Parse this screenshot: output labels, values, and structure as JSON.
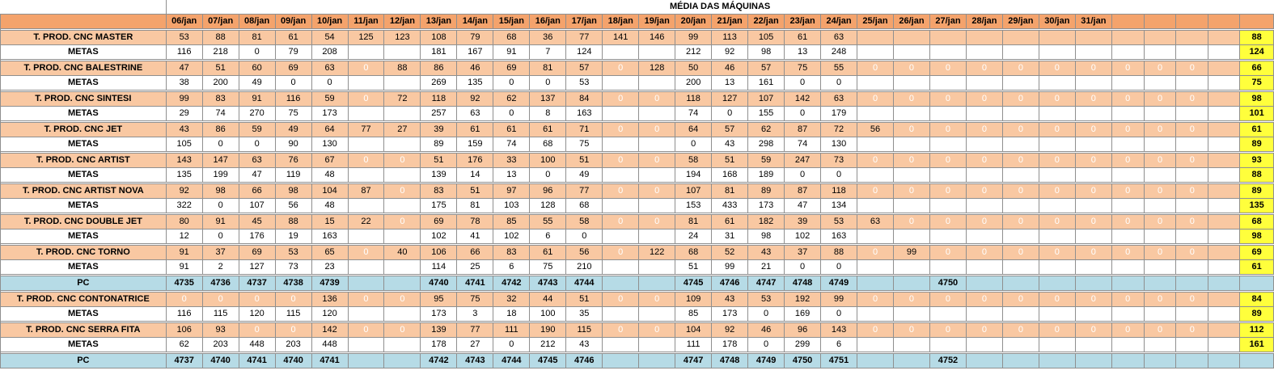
{
  "title": "MÉDIA DAS MÁQUINAS",
  "dates": [
    "06/jan",
    "07/jan",
    "08/jan",
    "09/jan",
    "10/jan",
    "11/jan",
    "12/jan",
    "13/jan",
    "14/jan",
    "15/jan",
    "16/jan",
    "17/jan",
    "18/jan",
    "19/jan",
    "20/jan",
    "21/jan",
    "22/jan",
    "23/jan",
    "24/jan",
    "25/jan",
    "26/jan",
    "27/jan",
    "28/jan",
    "29/jan",
    "30/jan",
    "31/jan",
    "",
    "",
    "",
    ""
  ],
  "rows": [
    {
      "label": "T. PROD. CNC MASTER",
      "type": "prod",
      "cells": [
        "53",
        "88",
        "81",
        "61",
        "54",
        "125",
        "123",
        "108",
        "79",
        "68",
        "36",
        "77",
        "141",
        "146",
        "99",
        "113",
        "105",
        "61",
        "63",
        "",
        "",
        "",
        "",
        "",
        "",
        "",
        "",
        "",
        "",
        ""
      ],
      "avg": "88"
    },
    {
      "label": "METAS",
      "type": "meta",
      "cells": [
        "116",
        "218",
        "0",
        "79",
        "208",
        "",
        "",
        "181",
        "167",
        "91",
        "7",
        "124",
        "",
        "",
        "212",
        "92",
        "98",
        "13",
        "248",
        "",
        "",
        "",
        "",
        "",
        "",
        "",
        "",
        "",
        "",
        ""
      ],
      "avg": "124"
    },
    {
      "label": "T. PROD. CNC BALESTRINE",
      "type": "prod",
      "cells": [
        "47",
        "51",
        "60",
        "69",
        "63",
        "0",
        "88",
        "86",
        "46",
        "69",
        "81",
        "57",
        "0",
        "128",
        "50",
        "46",
        "57",
        "75",
        "55",
        "0",
        "0",
        "0",
        "0",
        "0",
        "0",
        "0",
        "0",
        "0",
        "0",
        ""
      ],
      "avg": "66"
    },
    {
      "label": "METAS",
      "type": "meta",
      "cells": [
        "38",
        "200",
        "49",
        "0",
        "0",
        "",
        "",
        "269",
        "135",
        "0",
        "0",
        "53",
        "",
        "",
        "200",
        "13",
        "161",
        "0",
        "0",
        "",
        "",
        "",
        "",
        "",
        "",
        "",
        "",
        "",
        "",
        ""
      ],
      "avg": "75"
    },
    {
      "label": "T. PROD. CNC SINTESI",
      "type": "prod",
      "cells": [
        "99",
        "83",
        "91",
        "116",
        "59",
        "0",
        "72",
        "118",
        "92",
        "62",
        "137",
        "84",
        "0",
        "0",
        "118",
        "127",
        "107",
        "142",
        "63",
        "0",
        "0",
        "0",
        "0",
        "0",
        "0",
        "0",
        "0",
        "0",
        "0",
        ""
      ],
      "avg": "98"
    },
    {
      "label": "METAS",
      "type": "meta",
      "cells": [
        "29",
        "74",
        "270",
        "75",
        "173",
        "",
        "",
        "257",
        "63",
        "0",
        "8",
        "163",
        "",
        "",
        "74",
        "0",
        "155",
        "0",
        "179",
        "",
        "",
        "",
        "",
        "",
        "",
        "",
        "",
        "",
        "",
        ""
      ],
      "avg": "101"
    },
    {
      "label": "T. PROD. CNC JET",
      "type": "prod",
      "cells": [
        "43",
        "86",
        "59",
        "49",
        "64",
        "77",
        "27",
        "39",
        "61",
        "61",
        "61",
        "71",
        "0",
        "0",
        "64",
        "57",
        "62",
        "87",
        "72",
        "56",
        "0",
        "0",
        "0",
        "0",
        "0",
        "0",
        "0",
        "0",
        "0",
        ""
      ],
      "avg": "61"
    },
    {
      "label": "METAS",
      "type": "meta",
      "cells": [
        "105",
        "0",
        "0",
        "90",
        "130",
        "",
        "",
        "89",
        "159",
        "74",
        "68",
        "75",
        "",
        "",
        "0",
        "43",
        "298",
        "74",
        "130",
        "",
        "",
        "",
        "",
        "",
        "",
        "",
        "",
        "",
        "",
        ""
      ],
      "avg": "89"
    },
    {
      "label": "T. PROD. CNC ARTIST",
      "type": "prod",
      "cells": [
        "143",
        "147",
        "63",
        "76",
        "67",
        "0",
        "0",
        "51",
        "176",
        "33",
        "100",
        "51",
        "0",
        "0",
        "58",
        "51",
        "59",
        "247",
        "73",
        "0",
        "0",
        "0",
        "0",
        "0",
        "0",
        "0",
        "0",
        "0",
        "0",
        ""
      ],
      "avg": "93"
    },
    {
      "label": "METAS",
      "type": "meta",
      "cells": [
        "135",
        "199",
        "47",
        "119",
        "48",
        "",
        "",
        "139",
        "14",
        "13",
        "0",
        "49",
        "",
        "",
        "194",
        "168",
        "189",
        "0",
        "0",
        "",
        "",
        "",
        "",
        "",
        "",
        "",
        "",
        "",
        "",
        ""
      ],
      "avg": "88"
    },
    {
      "label": "T. PROD. CNC ARTIST NOVA",
      "type": "prod",
      "cells": [
        "92",
        "98",
        "66",
        "98",
        "104",
        "87",
        "0",
        "83",
        "51",
        "97",
        "96",
        "77",
        "0",
        "0",
        "107",
        "81",
        "89",
        "87",
        "118",
        "0",
        "0",
        "0",
        "0",
        "0",
        "0",
        "0",
        "0",
        "0",
        "0",
        ""
      ],
      "avg": "89"
    },
    {
      "label": "METAS",
      "type": "meta",
      "cells": [
        "322",
        "0",
        "107",
        "56",
        "48",
        "",
        "",
        "175",
        "81",
        "103",
        "128",
        "68",
        "",
        "",
        "153",
        "433",
        "173",
        "47",
        "134",
        "",
        "",
        "",
        "",
        "",
        "",
        "",
        "",
        "",
        "",
        ""
      ],
      "avg": "135"
    },
    {
      "label": "T. PROD. CNC DOUBLE JET",
      "type": "prod",
      "cells": [
        "80",
        "91",
        "45",
        "88",
        "15",
        "22",
        "0",
        "69",
        "78",
        "85",
        "55",
        "58",
        "0",
        "0",
        "81",
        "61",
        "182",
        "39",
        "53",
        "63",
        "0",
        "0",
        "0",
        "0",
        "0",
        "0",
        "0",
        "0",
        "0",
        ""
      ],
      "avg": "68"
    },
    {
      "label": "METAS",
      "type": "meta",
      "cells": [
        "12",
        "0",
        "176",
        "19",
        "163",
        "",
        "",
        "102",
        "41",
        "102",
        "6",
        "0",
        "",
        "",
        "24",
        "31",
        "98",
        "102",
        "163",
        "",
        "",
        "",
        "",
        "",
        "",
        "",
        "",
        "",
        "",
        ""
      ],
      "avg": "98"
    },
    {
      "label": "T. PROD. CNC TORNO",
      "type": "prod",
      "cells": [
        "91",
        "37",
        "69",
        "53",
        "65",
        "0",
        "40",
        "106",
        "66",
        "83",
        "61",
        "56",
        "0",
        "122",
        "68",
        "52",
        "43",
        "37",
        "88",
        "0",
        "99",
        "0",
        "0",
        "0",
        "0",
        "0",
        "0",
        "0",
        "0",
        ""
      ],
      "avg": "69"
    },
    {
      "label": "METAS",
      "type": "meta",
      "cells": [
        "91",
        "2",
        "127",
        "73",
        "23",
        "",
        "",
        "114",
        "25",
        "6",
        "75",
        "210",
        "",
        "",
        "51",
        "99",
        "21",
        "0",
        "0",
        "",
        "",
        "",
        "",
        "",
        "",
        "",
        "",
        "",
        "",
        ""
      ],
      "avg": "61"
    },
    {
      "label": "PC",
      "type": "pc",
      "cells": [
        "4735",
        "4736",
        "4737",
        "4738",
        "4739",
        "",
        "",
        "4740",
        "4741",
        "4742",
        "4743",
        "4744",
        "",
        "",
        "4745",
        "4746",
        "4747",
        "4748",
        "4749",
        "",
        "",
        "4750",
        "",
        "",
        "",
        "",
        "",
        "",
        "",
        ""
      ],
      "avg": ""
    },
    {
      "label": "T. PROD. CNC CONTONATRICE",
      "type": "prod",
      "cells": [
        "0",
        "0",
        "0",
        "0",
        "136",
        "0",
        "0",
        "95",
        "75",
        "32",
        "44",
        "51",
        "0",
        "0",
        "109",
        "43",
        "53",
        "192",
        "99",
        "0",
        "0",
        "0",
        "0",
        "0",
        "0",
        "0",
        "0",
        "0",
        "0",
        ""
      ],
      "avg": "84"
    },
    {
      "label": "METAS",
      "type": "meta",
      "cells": [
        "116",
        "115",
        "120",
        "115",
        "120",
        "",
        "",
        "173",
        "3",
        "18",
        "100",
        "35",
        "",
        "",
        "85",
        "173",
        "0",
        "169",
        "0",
        "",
        "",
        "",
        "",
        "",
        "",
        "",
        "",
        "",
        "",
        ""
      ],
      "avg": "89"
    },
    {
      "label": "T. PROD. CNC SERRA FITA",
      "type": "prod",
      "cells": [
        "106",
        "93",
        "0",
        "0",
        "142",
        "0",
        "0",
        "139",
        "77",
        "111",
        "190",
        "115",
        "0",
        "0",
        "104",
        "92",
        "46",
        "96",
        "143",
        "0",
        "0",
        "0",
        "0",
        "0",
        "0",
        "0",
        "0",
        "0",
        "0",
        ""
      ],
      "avg": "112"
    },
    {
      "label": "METAS",
      "type": "meta",
      "cells": [
        "62",
        "203",
        "448",
        "203",
        "448",
        "",
        "",
        "178",
        "27",
        "0",
        "212",
        "43",
        "",
        "",
        "111",
        "178",
        "0",
        "299",
        "6",
        "",
        "",
        "",
        "",
        "",
        "",
        "",
        "",
        "",
        "",
        ""
      ],
      "avg": "161"
    },
    {
      "label": "PC",
      "type": "pc",
      "cells": [
        "4737",
        "4740",
        "4741",
        "4740",
        "4741",
        "",
        "",
        "4742",
        "4743",
        "4744",
        "4745",
        "4746",
        "",
        "",
        "4747",
        "4748",
        "4749",
        "4750",
        "4751",
        "",
        "",
        "4752",
        "",
        "",
        "",
        "",
        "",
        "",
        "",
        ""
      ],
      "avg": ""
    }
  ],
  "colors": {
    "header": "#f4a36c",
    "prod": "#f9c8a2",
    "pc": "#b6dbe6",
    "avg": "#ffff3c"
  }
}
